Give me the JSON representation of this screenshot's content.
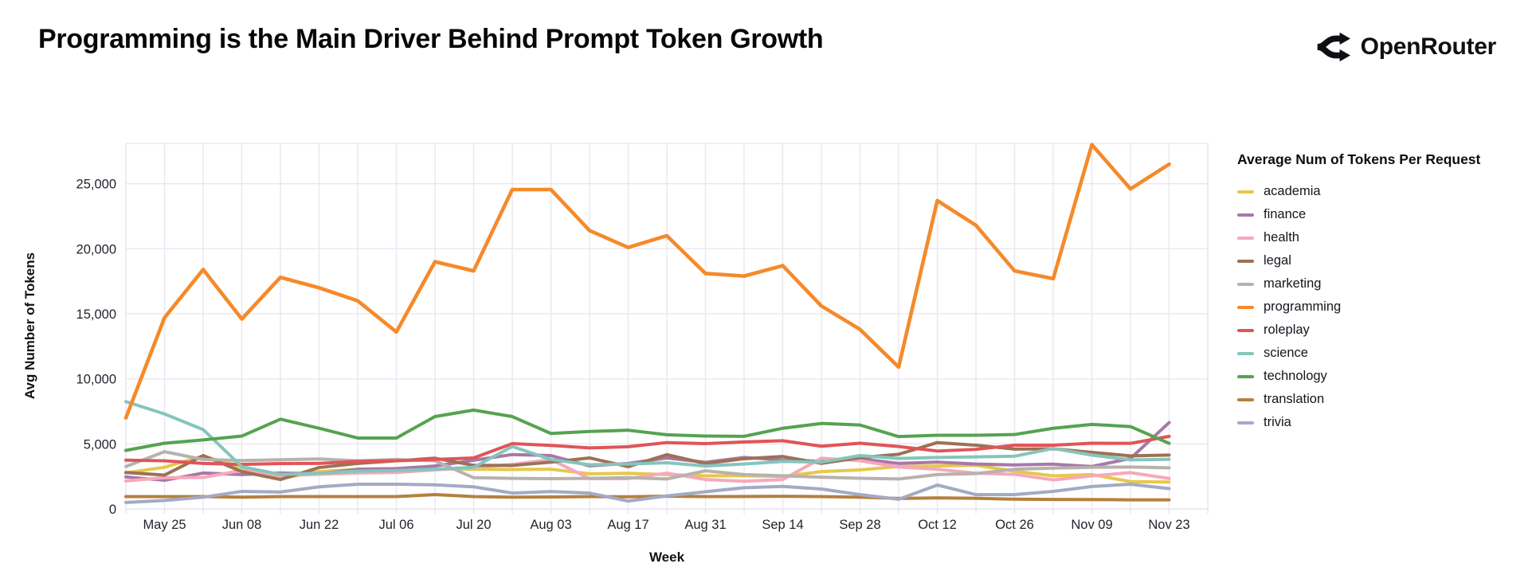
{
  "header": {
    "title": "Programming is the Main Driver Behind Prompt Token Growth",
    "brand": "OpenRouter"
  },
  "axes": {
    "x_title": "Week",
    "y_title": "Avg Number of Tokens",
    "y_tick_labels": [
      "0",
      "5,000",
      "10,000",
      "15,000",
      "20,000",
      "25,000"
    ],
    "x_tick_labels": [
      "May 25",
      "Jun 08",
      "Jun 22",
      "Jul 06",
      "Jul 20",
      "Aug 03",
      "Aug 17",
      "Aug 31",
      "Sep 14",
      "Sep 28",
      "Oct 12",
      "Oct 26",
      "Nov 09",
      "Nov 23"
    ]
  },
  "legend": {
    "title": "Average Num of Tokens Per Request"
  },
  "chart_data": {
    "type": "line",
    "title": "Programming is the Main Driver Behind Prompt Token Growth",
    "xlabel": "Week",
    "ylabel": "Avg Number of Tokens",
    "ylim": [
      0,
      28100
    ],
    "grid": true,
    "legend_position": "right",
    "x": [
      "May 18",
      "May 25",
      "Jun 01",
      "Jun 08",
      "Jun 15",
      "Jun 22",
      "Jun 29",
      "Jul 06",
      "Jul 13",
      "Jul 20",
      "Jul 27",
      "Aug 03",
      "Aug 10",
      "Aug 17",
      "Aug 24",
      "Aug 31",
      "Sep 07",
      "Sep 14",
      "Sep 21",
      "Sep 28",
      "Oct 05",
      "Oct 12",
      "Oct 19",
      "Oct 26",
      "Nov 02",
      "Nov 09",
      "Nov 16",
      "Nov 23"
    ],
    "series": [
      {
        "name": "academia",
        "color": "#e6c84a",
        "values": [
          2770,
          3200,
          4080,
          3170,
          2330,
          2870,
          3050,
          3100,
          3050,
          3050,
          3030,
          3050,
          2700,
          2740,
          2640,
          2550,
          2550,
          2500,
          2870,
          3000,
          3260,
          3300,
          3360,
          2900,
          2540,
          2640,
          2100,
          2070
        ]
      },
      {
        "name": "finance",
        "color": "#a878a8",
        "values": [
          2460,
          2200,
          2760,
          2640,
          2760,
          2700,
          3050,
          3100,
          3300,
          3740,
          4180,
          4100,
          3310,
          3500,
          3920,
          3580,
          3960,
          3760,
          3660,
          3860,
          3500,
          3600,
          3450,
          3380,
          3440,
          3260,
          3880,
          6640
        ]
      },
      {
        "name": "health",
        "color": "#f7a8bb",
        "values": [
          2150,
          2400,
          2420,
          2960,
          2560,
          2660,
          2760,
          2800,
          3000,
          3190,
          3420,
          3800,
          2330,
          2330,
          2750,
          2260,
          2130,
          2260,
          3900,
          3700,
          3220,
          3050,
          2750,
          2660,
          2230,
          2540,
          2790,
          2340
        ]
      },
      {
        "name": "legal",
        "color": "#9c7155",
        "values": [
          2800,
          2600,
          4100,
          2870,
          2260,
          3180,
          3500,
          3700,
          3900,
          3350,
          3340,
          3600,
          3920,
          3250,
          4170,
          3490,
          3860,
          4030,
          3500,
          3940,
          4200,
          5100,
          4900,
          4600,
          4620,
          4350,
          4080,
          4140
        ]
      },
      {
        "name": "marketing",
        "color": "#b8b2ae",
        "values": [
          3260,
          4400,
          3800,
          3720,
          3780,
          3840,
          3700,
          3800,
          3700,
          2400,
          2350,
          2330,
          2350,
          2400,
          2300,
          2930,
          2640,
          2550,
          2440,
          2360,
          2300,
          2640,
          2720,
          3050,
          3140,
          3200,
          3220,
          3160
        ]
      },
      {
        "name": "programming",
        "color": "#f58a2a",
        "values": [
          7000,
          14700,
          18400,
          14600,
          17800,
          17000,
          16000,
          13600,
          19000,
          18300,
          24550,
          24550,
          21400,
          20100,
          21000,
          18100,
          17900,
          18700,
          15600,
          13800,
          10900,
          23700,
          21800,
          18300,
          17700,
          28000,
          24600,
          26500
        ]
      },
      {
        "name": "roleplay",
        "color": "#e05558",
        "values": [
          3750,
          3700,
          3500,
          3420,
          3490,
          3500,
          3660,
          3700,
          3800,
          3920,
          5020,
          4880,
          4690,
          4780,
          5100,
          5020,
          5150,
          5240,
          4820,
          5050,
          4800,
          4450,
          4580,
          4900,
          4900,
          5050,
          5040,
          5580
        ]
      },
      {
        "name": "science",
        "color": "#85c5bd",
        "values": [
          8250,
          7300,
          6100,
          3250,
          2650,
          2750,
          2900,
          2950,
          3050,
          3200,
          4800,
          3800,
          3400,
          3450,
          3550,
          3300,
          3450,
          3650,
          3600,
          4100,
          3880,
          3960,
          4000,
          4050,
          4650,
          4140,
          3770,
          3810
        ]
      },
      {
        "name": "technology",
        "color": "#55a350",
        "values": [
          4500,
          5050,
          5300,
          5600,
          6900,
          6200,
          5450,
          5450,
          7100,
          7600,
          7100,
          5800,
          5950,
          6050,
          5700,
          5600,
          5580,
          6200,
          6570,
          6450,
          5560,
          5660,
          5660,
          5720,
          6200,
          6500,
          6330,
          5040
        ]
      },
      {
        "name": "translation",
        "color": "#b5803f",
        "values": [
          950,
          950,
          950,
          900,
          950,
          950,
          950,
          950,
          1100,
          950,
          900,
          920,
          950,
          930,
          980,
          950,
          960,
          975,
          950,
          900,
          800,
          850,
          820,
          750,
          730,
          720,
          700,
          695
        ]
      },
      {
        "name": "trivia",
        "color": "#a3aac4",
        "values": [
          500,
          650,
          900,
          1350,
          1300,
          1700,
          1900,
          1900,
          1850,
          1700,
          1220,
          1340,
          1220,
          600,
          1000,
          1320,
          1630,
          1730,
          1530,
          1100,
          740,
          1840,
          1100,
          1100,
          1350,
          1720,
          1900,
          1560
        ]
      }
    ]
  }
}
